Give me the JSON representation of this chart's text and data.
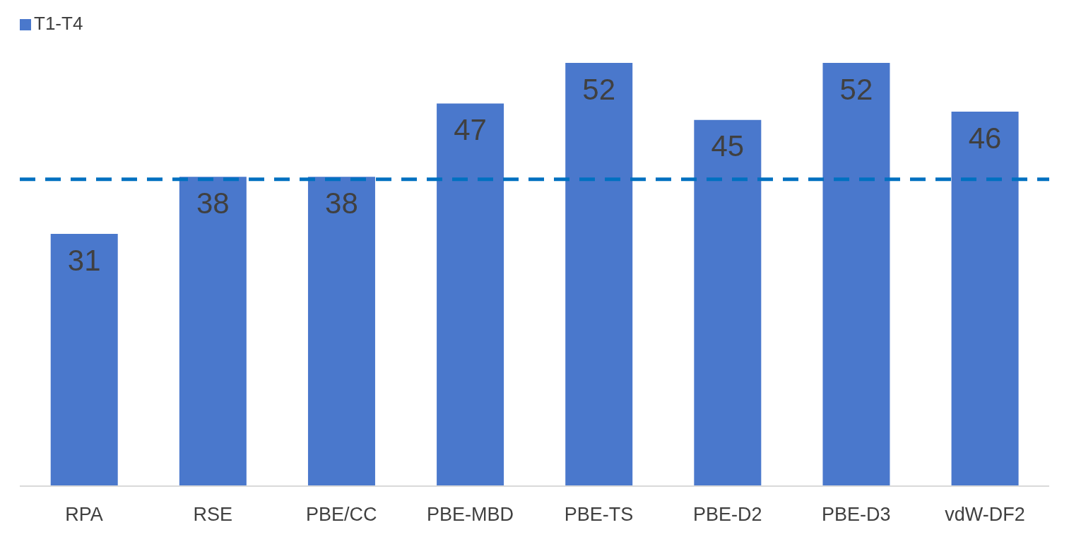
{
  "chart_data": {
    "type": "bar",
    "categories": [
      "RPA",
      "RSE",
      "PBE/CC",
      "PBE-MBD",
      "PBE-TS",
      "PBE-D2",
      "PBE-D3",
      "vdW-DF2"
    ],
    "series": [
      {
        "name": "T1-T4",
        "color": "#4a78cc",
        "values": [
          31,
          38,
          38,
          47,
          52,
          45,
          52,
          46
        ]
      }
    ],
    "data_labels": true,
    "legend": "top left",
    "grid": false,
    "ref_lines": [
      {
        "axis": "y",
        "value": 37.7,
        "color": "#0070c0",
        "line_style": "dashed"
      }
    ]
  }
}
